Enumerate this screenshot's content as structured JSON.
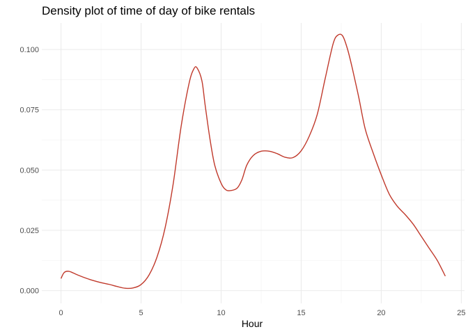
{
  "chart_data": {
    "type": "line",
    "title": "Density plot of time of day of bike rentals",
    "xlabel": "Hour",
    "ylabel": "",
    "xlim": [
      -1.2,
      25.2
    ],
    "ylim": [
      -0.0053,
      0.111
    ],
    "x_ticks": [
      0,
      5,
      10,
      15,
      20,
      25
    ],
    "x_tick_labels": [
      "0",
      "5",
      "10",
      "15",
      "20",
      "25"
    ],
    "y_ticks": [
      0,
      0.025,
      0.05,
      0.075,
      0.1
    ],
    "y_tick_labels": [
      "0.000",
      "0.025",
      "0.050",
      "0.075",
      "0.100"
    ],
    "grid": true,
    "line_color": "#c0392b",
    "series": [
      {
        "x": [
          0,
          0.2,
          0.5,
          1,
          1.5,
          2,
          2.5,
          3,
          3.5,
          4,
          4.5,
          5,
          5.5,
          6,
          6.5,
          7,
          7.5,
          8,
          8.3,
          8.5,
          8.8,
          9,
          9.3,
          9.6,
          10,
          10.3,
          10.6,
          11,
          11.3,
          11.6,
          12,
          12.5,
          13,
          13.5,
          14,
          14.5,
          15,
          15.5,
          16,
          16.5,
          17,
          17.3,
          17.6,
          17.9,
          18.2,
          18.6,
          19,
          19.5,
          20,
          20.5,
          21,
          21.5,
          22,
          22.5,
          23,
          23.5,
          24
        ],
        "y": [
          0.005,
          0.0075,
          0.008,
          0.0066,
          0.0053,
          0.0042,
          0.0033,
          0.0026,
          0.0017,
          0.001,
          0.0011,
          0.0025,
          0.0065,
          0.014,
          0.026,
          0.044,
          0.068,
          0.086,
          0.092,
          0.0923,
          0.087,
          0.077,
          0.063,
          0.052,
          0.0445,
          0.0418,
          0.0415,
          0.0425,
          0.046,
          0.052,
          0.056,
          0.0578,
          0.0578,
          0.0568,
          0.0553,
          0.0552,
          0.058,
          0.064,
          0.073,
          0.088,
          0.1025,
          0.106,
          0.1055,
          0.1,
          0.092,
          0.08,
          0.067,
          0.057,
          0.048,
          0.04,
          0.035,
          0.0315,
          0.0275,
          0.0225,
          0.0175,
          0.0125,
          0.006
        ]
      }
    ]
  }
}
